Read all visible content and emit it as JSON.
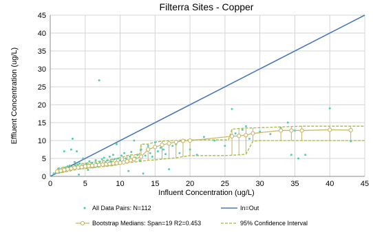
{
  "chart_data": {
    "type": "scatter",
    "title": "Filterra Sites - Copper",
    "xlabel": "Influent Concentration (ug/L)",
    "ylabel": "Effluent Concentration (ug/L)",
    "xlim": [
      0,
      45
    ],
    "ylim": [
      0,
      45
    ],
    "xticks": [
      0,
      5,
      10,
      15,
      20,
      25,
      30,
      35,
      40,
      45
    ],
    "yticks": [
      0,
      5,
      10,
      15,
      20,
      25,
      30,
      35,
      40,
      45
    ],
    "grid": true,
    "legend_position": "bottom",
    "colors": {
      "scatter": "#4fcfb0",
      "identity": "#4a78b8",
      "median": "#c8b25a",
      "ci": "#a8b83a",
      "grid": "#d4d4d4",
      "axis": "#888888"
    },
    "legend": [
      {
        "key": "scatter",
        "label": "All Data Pairs: N=112"
      },
      {
        "key": "identity",
        "label": "In=Out"
      },
      {
        "key": "median",
        "label": "Bootstrap Medians: Span=19 R2=0.453"
      },
      {
        "key": "ci",
        "label": "95% Confidence Interval"
      }
    ],
    "scatter_points": [
      [
        0.5,
        0.8
      ],
      [
        0.8,
        1.0
      ],
      [
        1.0,
        1.5
      ],
      [
        1.2,
        2.2
      ],
      [
        1.4,
        1.2
      ],
      [
        1.6,
        2.0
      ],
      [
        1.8,
        1.6
      ],
      [
        2.0,
        7.0
      ],
      [
        2.1,
        2.4
      ],
      [
        2.3,
        1.9
      ],
      [
        2.5,
        2.8
      ],
      [
        2.6,
        2.1
      ],
      [
        2.8,
        3.0
      ],
      [
        3.0,
        7.5
      ],
      [
        3.1,
        2.6
      ],
      [
        3.2,
        10.5
      ],
      [
        3.3,
        2.3
      ],
      [
        3.5,
        4.0
      ],
      [
        3.6,
        3.0
      ],
      [
        3.7,
        2.5
      ],
      [
        3.8,
        7.0
      ],
      [
        3.9,
        3.3
      ],
      [
        4.0,
        2.8
      ],
      [
        4.1,
        0.5
      ],
      [
        4.2,
        3.6
      ],
      [
        4.3,
        2.2
      ],
      [
        4.5,
        3.0
      ],
      [
        4.6,
        2.5
      ],
      [
        4.7,
        5.0
      ],
      [
        4.8,
        3.1
      ],
      [
        5.0,
        2.6
      ],
      [
        5.2,
        3.5
      ],
      [
        5.4,
        1.8
      ],
      [
        5.5,
        2.9
      ],
      [
        5.6,
        4.2
      ],
      [
        5.8,
        3.3
      ],
      [
        6.0,
        3.8
      ],
      [
        6.1,
        2.5
      ],
      [
        6.3,
        3.0
      ],
      [
        6.5,
        4.5
      ],
      [
        6.6,
        3.6
      ],
      [
        6.8,
        2.8
      ],
      [
        7.0,
        26.8
      ],
      [
        7.1,
        4.0
      ],
      [
        7.2,
        3.2
      ],
      [
        7.4,
        4.8
      ],
      [
        7.5,
        3.5
      ],
      [
        7.7,
        5.2
      ],
      [
        7.9,
        4.0
      ],
      [
        8.0,
        3.0
      ],
      [
        8.2,
        4.5
      ],
      [
        8.4,
        3.8
      ],
      [
        8.5,
        5.5
      ],
      [
        8.7,
        4.2
      ],
      [
        8.9,
        3.5
      ],
      [
        9.0,
        6.0
      ],
      [
        9.2,
        4.8
      ],
      [
        9.4,
        4.0
      ],
      [
        9.5,
        9.0
      ],
      [
        9.7,
        5.0
      ],
      [
        10.0,
        4.5
      ],
      [
        10.2,
        5.8
      ],
      [
        10.4,
        4.2
      ],
      [
        10.6,
        6.5
      ],
      [
        10.8,
        5.0
      ],
      [
        11.0,
        3.8
      ],
      [
        11.2,
        1.5
      ],
      [
        11.4,
        5.5
      ],
      [
        11.6,
        6.8
      ],
      [
        11.8,
        4.8
      ],
      [
        12.0,
        10.0
      ],
      [
        12.2,
        5.2
      ],
      [
        12.5,
        6.0
      ],
      [
        12.8,
        4.5
      ],
      [
        13.0,
        7.5
      ],
      [
        13.3,
        0.8
      ],
      [
        13.6,
        5.8
      ],
      [
        14.0,
        8.5
      ],
      [
        14.3,
        6.5
      ],
      [
        14.6,
        5.5
      ],
      [
        15.0,
        9.5
      ],
      [
        15.4,
        7.0
      ],
      [
        15.8,
        8.0
      ],
      [
        16.2,
        7.5
      ],
      [
        16.5,
        6.2
      ],
      [
        17.0,
        2.0
      ],
      [
        17.5,
        8.5
      ],
      [
        18.0,
        9.0
      ],
      [
        18.5,
        6.5
      ],
      [
        19.0,
        10.0
      ],
      [
        20.0,
        7.5
      ],
      [
        21.0,
        6.0
      ],
      [
        22.0,
        11.0
      ],
      [
        23.5,
        10.0
      ],
      [
        25.0,
        8.5
      ],
      [
        26.0,
        18.8
      ],
      [
        26.5,
        12.0
      ],
      [
        27.0,
        11.5
      ],
      [
        27.5,
        13.0
      ],
      [
        28.0,
        14.0
      ],
      [
        28.5,
        10.5
      ],
      [
        29.0,
        12.0
      ],
      [
        30.0,
        12.5
      ],
      [
        31.5,
        11.8
      ],
      [
        33.0,
        13.5
      ],
      [
        34.0,
        15.0
      ],
      [
        34.5,
        6.0
      ],
      [
        35.0,
        12.8
      ],
      [
        35.5,
        5.0
      ],
      [
        36.5,
        6.0
      ],
      [
        40.0,
        19.0
      ],
      [
        43.0,
        9.8
      ]
    ],
    "identity_line": [
      [
        0,
        0
      ],
      [
        45,
        45
      ]
    ],
    "median_x": [
      1.0,
      1.5,
      2.0,
      2.5,
      3.0,
      3.5,
      4.0,
      4.5,
      5.0,
      5.5,
      6.0,
      6.5,
      7.0,
      7.5,
      8.0,
      8.5,
      9.0,
      9.5,
      10.0,
      10.5,
      11.0,
      11.5,
      12.0,
      13.0,
      14.0,
      15.0,
      16.0,
      17.0,
      18.0,
      19.0,
      20.0,
      26.0,
      27.0,
      28.0,
      29.0,
      33.0,
      34.5,
      36.0,
      40.0,
      43.0
    ],
    "median_y": [
      1.4,
      1.6,
      1.8,
      2.0,
      2.2,
      2.4,
      2.5,
      2.6,
      2.8,
      2.9,
      3.0,
      3.1,
      3.2,
      3.3,
      3.4,
      3.5,
      3.6,
      3.7,
      3.8,
      3.9,
      4.2,
      4.5,
      4.8,
      5.5,
      7.5,
      8.2,
      8.8,
      9.2,
      9.6,
      9.9,
      10.0,
      11.2,
      11.3,
      11.5,
      12.0,
      12.8,
      12.8,
      12.8,
      13.0,
      12.9
    ],
    "ci_upper_x": [
      1.0,
      2.0,
      3.0,
      4.0,
      5.0,
      6.0,
      7.0,
      8.0,
      9.0,
      10.0,
      11.0,
      11.5,
      12.0,
      12.8,
      13.0,
      14.0,
      15.0,
      16.0,
      17.0,
      18.0,
      19.0,
      20.0,
      25.5,
      26.0,
      28.0,
      29.0,
      30.0,
      33.0,
      36.0,
      40.0,
      45.0
    ],
    "ci_upper_y": [
      2.2,
      2.6,
      3.0,
      3.4,
      3.7,
      3.9,
      4.2,
      4.5,
      4.8,
      5.2,
      5.8,
      6.0,
      6.0,
      6.2,
      9.0,
      9.0,
      9.6,
      9.8,
      10.0,
      10.0,
      10.2,
      10.2,
      10.2,
      13.2,
      13.5,
      13.5,
      13.6,
      13.8,
      14.0,
      14.0,
      14.0
    ],
    "ci_lower_x": [
      1.0,
      2.0,
      3.0,
      4.0,
      5.0,
      6.0,
      7.0,
      8.0,
      9.0,
      10.0,
      11.0,
      12.0,
      13.0,
      14.0,
      15.0,
      16.0,
      18.0,
      20.0,
      25.0,
      27.0,
      28.0,
      29.0,
      30.0,
      35.0,
      40.0,
      45.0
    ],
    "ci_lower_y": [
      0.8,
      1.2,
      1.6,
      2.0,
      2.2,
      2.4,
      2.6,
      2.8,
      3.0,
      3.4,
      3.8,
      4.0,
      4.2,
      4.5,
      4.6,
      4.8,
      5.2,
      5.8,
      5.8,
      6.0,
      6.2,
      9.8,
      10.0,
      10.0,
      10.0,
      10.0
    ]
  }
}
